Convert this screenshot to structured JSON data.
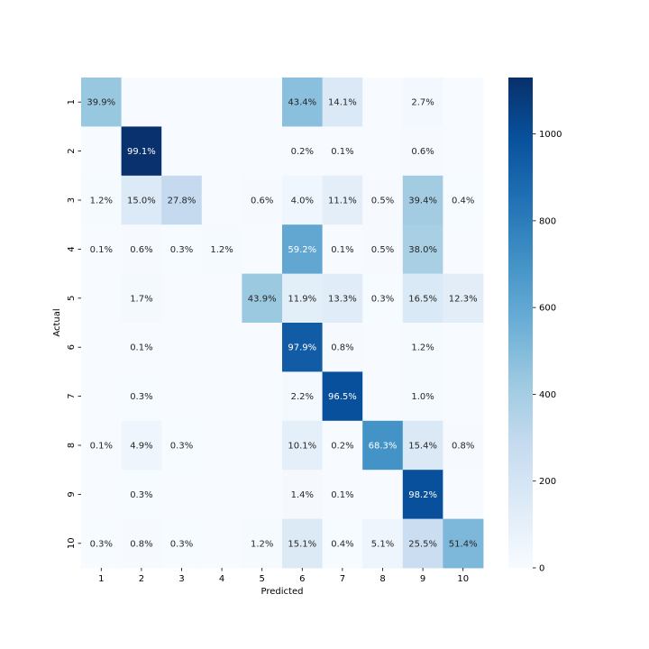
{
  "chart_data": {
    "type": "heatmap",
    "xlabel": "Predicted",
    "ylabel": "Actual",
    "x_categories": [
      "1",
      "2",
      "3",
      "4",
      "5",
      "6",
      "7",
      "8",
      "9",
      "10"
    ],
    "y_categories": [
      "1",
      "2",
      "3",
      "4",
      "5",
      "6",
      "7",
      "8",
      "9",
      "10"
    ],
    "colormap": "Blues",
    "color_range": [
      0,
      1130
    ],
    "colorbar_ticks": [
      0,
      200,
      400,
      600,
      800,
      1000
    ],
    "cells": [
      {
        "row": "1",
        "col": "1",
        "label": "39.9%",
        "value": 440
      },
      {
        "row": "1",
        "col": "6",
        "label": "43.4%",
        "value": 480
      },
      {
        "row": "1",
        "col": "7",
        "label": "14.1%",
        "value": 156
      },
      {
        "row": "1",
        "col": "9",
        "label": "2.7%",
        "value": 30
      },
      {
        "row": "2",
        "col": "2",
        "label": "99.1%",
        "value": 1125
      },
      {
        "row": "2",
        "col": "6",
        "label": "0.2%",
        "value": 2
      },
      {
        "row": "2",
        "col": "7",
        "label": "0.1%",
        "value": 1
      },
      {
        "row": "2",
        "col": "9",
        "label": "0.6%",
        "value": 7
      },
      {
        "row": "3",
        "col": "1",
        "label": "1.2%",
        "value": 12
      },
      {
        "row": "3",
        "col": "2",
        "label": "15.0%",
        "value": 155
      },
      {
        "row": "3",
        "col": "3",
        "label": "27.8%",
        "value": 287
      },
      {
        "row": "3",
        "col": "5",
        "label": "0.6%",
        "value": 6
      },
      {
        "row": "3",
        "col": "6",
        "label": "4.0%",
        "value": 41
      },
      {
        "row": "3",
        "col": "7",
        "label": "11.1%",
        "value": 115
      },
      {
        "row": "3",
        "col": "8",
        "label": "0.5%",
        "value": 5
      },
      {
        "row": "3",
        "col": "9",
        "label": "39.4%",
        "value": 407
      },
      {
        "row": "3",
        "col": "10",
        "label": "0.4%",
        "value": 4
      },
      {
        "row": "4",
        "col": "1",
        "label": "0.1%",
        "value": 1
      },
      {
        "row": "4",
        "col": "2",
        "label": "0.6%",
        "value": 6
      },
      {
        "row": "4",
        "col": "3",
        "label": "0.3%",
        "value": 3
      },
      {
        "row": "4",
        "col": "4",
        "label": "1.2%",
        "value": 12
      },
      {
        "row": "4",
        "col": "6",
        "label": "59.2%",
        "value": 598
      },
      {
        "row": "4",
        "col": "7",
        "label": "0.1%",
        "value": 1
      },
      {
        "row": "4",
        "col": "8",
        "label": "0.5%",
        "value": 5
      },
      {
        "row": "4",
        "col": "9",
        "label": "38.0%",
        "value": 384
      },
      {
        "row": "5",
        "col": "2",
        "label": "1.7%",
        "value": 17
      },
      {
        "row": "5",
        "col": "5",
        "label": "43.9%",
        "value": 431
      },
      {
        "row": "5",
        "col": "6",
        "label": "11.9%",
        "value": 117
      },
      {
        "row": "5",
        "col": "7",
        "label": "13.3%",
        "value": 131
      },
      {
        "row": "5",
        "col": "8",
        "label": "0.3%",
        "value": 3
      },
      {
        "row": "5",
        "col": "9",
        "label": "16.5%",
        "value": 162
      },
      {
        "row": "5",
        "col": "10",
        "label": "12.3%",
        "value": 121
      },
      {
        "row": "6",
        "col": "2",
        "label": "0.1%",
        "value": 1
      },
      {
        "row": "6",
        "col": "6",
        "label": "97.9%",
        "value": 938
      },
      {
        "row": "6",
        "col": "7",
        "label": "0.8%",
        "value": 8
      },
      {
        "row": "6",
        "col": "9",
        "label": "1.2%",
        "value": 11
      },
      {
        "row": "7",
        "col": "2",
        "label": "0.3%",
        "value": 3
      },
      {
        "row": "7",
        "col": "6",
        "label": "2.2%",
        "value": 22
      },
      {
        "row": "7",
        "col": "7",
        "label": "96.5%",
        "value": 992
      },
      {
        "row": "7",
        "col": "9",
        "label": "1.0%",
        "value": 10
      },
      {
        "row": "8",
        "col": "1",
        "label": "0.1%",
        "value": 1
      },
      {
        "row": "8",
        "col": "2",
        "label": "4.9%",
        "value": 50
      },
      {
        "row": "8",
        "col": "3",
        "label": "0.3%",
        "value": 3
      },
      {
        "row": "8",
        "col": "6",
        "label": "10.1%",
        "value": 104
      },
      {
        "row": "8",
        "col": "7",
        "label": "0.2%",
        "value": 2
      },
      {
        "row": "8",
        "col": "8",
        "label": "68.3%",
        "value": 702
      },
      {
        "row": "8",
        "col": "9",
        "label": "15.4%",
        "value": 158
      },
      {
        "row": "8",
        "col": "10",
        "label": "0.8%",
        "value": 8
      },
      {
        "row": "9",
        "col": "2",
        "label": "0.3%",
        "value": 3
      },
      {
        "row": "9",
        "col": "6",
        "label": "1.4%",
        "value": 14
      },
      {
        "row": "9",
        "col": "7",
        "label": "0.1%",
        "value": 1
      },
      {
        "row": "9",
        "col": "9",
        "label": "98.2%",
        "value": 991
      },
      {
        "row": "10",
        "col": "1",
        "label": "0.3%",
        "value": 3
      },
      {
        "row": "10",
        "col": "2",
        "label": "0.8%",
        "value": 8
      },
      {
        "row": "10",
        "col": "3",
        "label": "0.3%",
        "value": 3
      },
      {
        "row": "10",
        "col": "5",
        "label": "1.2%",
        "value": 12
      },
      {
        "row": "10",
        "col": "6",
        "label": "15.1%",
        "value": 152
      },
      {
        "row": "10",
        "col": "7",
        "label": "0.4%",
        "value": 4
      },
      {
        "row": "10",
        "col": "8",
        "label": "5.1%",
        "value": 51
      },
      {
        "row": "10",
        "col": "9",
        "label": "25.5%",
        "value": 256
      },
      {
        "row": "10",
        "col": "10",
        "label": "51.4%",
        "value": 516
      }
    ]
  }
}
